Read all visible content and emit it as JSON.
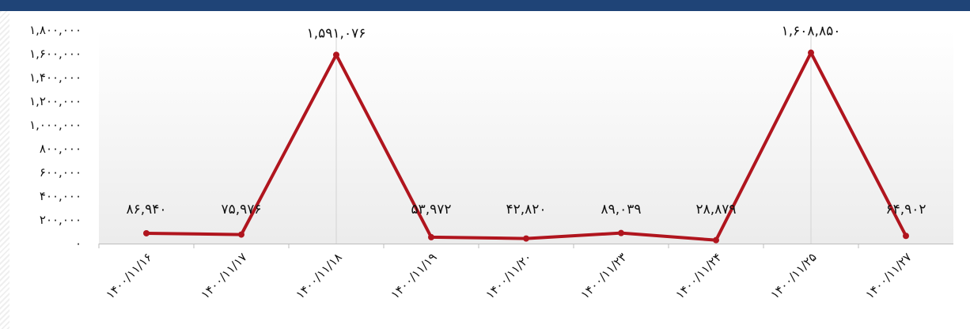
{
  "chart_data": {
    "type": "line",
    "title": "",
    "xlabel": "",
    "ylabel": "",
    "ylim": [
      0,
      1800000
    ],
    "grid": "vertical-lines-at-peaks",
    "legend": "none",
    "categories": [
      "۱۴۰۰/۱۱/۱۶",
      "۱۴۰۰/۱۱/۱۷",
      "۱۴۰۰/۱۱/۱۸",
      "۱۴۰۰/۱۱/۱۹",
      "۱۴۰۰/۱۱/۲۰",
      "۱۴۰۰/۱۱/۲۳",
      "۱۴۰۰/۱۱/۲۴",
      "۱۴۰۰/۱۱/۲۵",
      "۱۴۰۰/۱۱/۲۷"
    ],
    "values": [
      86940,
      75976,
      1591076,
      53972,
      42820,
      89039,
      28879,
      1608850,
      64902
    ],
    "data_labels": [
      "۸۶,۹۴۰",
      "۷۵,۹۷۶",
      "۱,۵۹۱,۰۷۶",
      "۵۳,۹۷۲",
      "۴۲,۸۲۰",
      "۸۹,۰۳۹",
      "۲۸,۸۷۹",
      "۱,۶۰۸,۸۵۰",
      "۶۴,۹۰۲"
    ],
    "y_ticks": [
      0,
      200000,
      400000,
      600000,
      800000,
      1000000,
      1200000,
      1400000,
      1600000,
      1800000
    ],
    "y_tick_labels": [
      "۰",
      "۲۰۰,۰۰۰",
      "۴۰۰,۰۰۰",
      "۶۰۰,۰۰۰",
      "۸۰۰,۰۰۰",
      "۱,۰۰۰,۰۰۰",
      "۱,۲۰۰,۰۰۰",
      "۱,۴۰۰,۰۰۰",
      "۱,۶۰۰,۰۰۰",
      "۱,۸۰۰,۰۰۰"
    ],
    "line_color": "#b0151e",
    "header_color": "#1f4477"
  }
}
